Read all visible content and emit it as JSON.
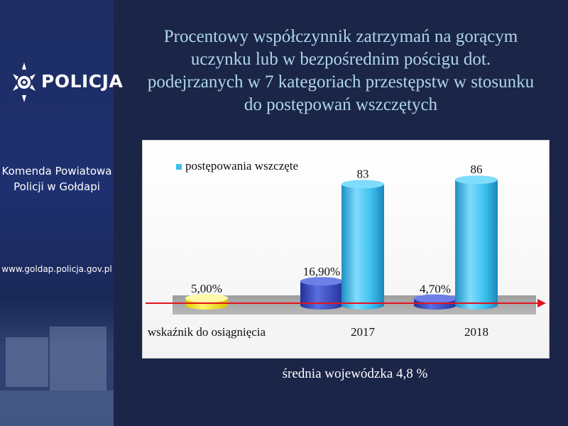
{
  "banner": {
    "logo_text": "POLICJA",
    "unit_name": [
      "Komenda Powiatowa",
      "Policji w Gołdapi"
    ],
    "website": "www.goldap.policja.gov.pl"
  },
  "title_lines": [
    "Procentowy współczynnik zatrzymań na gorącym",
    "uczynku lub w bezpośrednim pościgu dot.",
    "podejrzanych w 7 kategoriach przestępstw w stosunku",
    "do postępowań wszczętych"
  ],
  "note": "średnia wojewódzka 4,8 %",
  "chart_data": {
    "type": "bar",
    "style": "3d-cylinder",
    "categories": [
      "wskaźnik do osiągnięcia",
      "2017",
      "2018"
    ],
    "series": [
      {
        "values": [
          5.0,
          16.9,
          4.7
        ],
        "labels": [
          "5,00%",
          "16,90%",
          "4,70%"
        ]
      },
      {
        "name": "postępowania wszczęte",
        "values": [
          null,
          83,
          86
        ],
        "labels": [
          "",
          "83",
          "86"
        ]
      }
    ],
    "legend": "top-left",
    "reference_line": "red arrow across the chart floor"
  },
  "colors": {
    "background": "#1b2547",
    "title": "#aed6ee",
    "series_percent": "#3a4fc0",
    "series_target": "#f2e21a",
    "series_count": "#3cc0ef",
    "floor": "#a8a8a8",
    "arrow": "#e2141c"
  }
}
